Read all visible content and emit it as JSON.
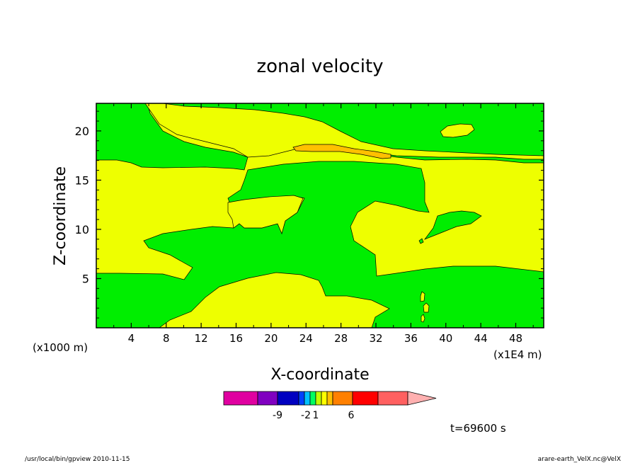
{
  "chart_data": {
    "type": "heatmap",
    "title": "zonal velocity",
    "xlabel": "X-coordinate",
    "ylabel": "Z-coordinate",
    "x_unit_left": "(x1000 m)",
    "x_unit_right": "(x1E4 m)",
    "xlim": [
      0,
      51.2
    ],
    "ylim": [
      0,
      22.8
    ],
    "x_ticks": [
      4,
      8,
      12,
      16,
      20,
      24,
      28,
      32,
      36,
      40,
      44,
      48
    ],
    "y_ticks": [
      5,
      10,
      15,
      20
    ],
    "time_label": "t=69600 s",
    "colorbar": {
      "tick_labels": [
        "-9",
        "-2",
        "1",
        "6"
      ],
      "segment_colors": [
        "#e000a0",
        "#8000c0",
        "#0000c0",
        "#0040ff",
        "#00c0ff",
        "#00ff60",
        "#c0ff00",
        "#ffff00",
        "#ffc000",
        "#ff8000",
        "#ff0000",
        "#ff6060",
        "#ffb0b0"
      ]
    },
    "fill_colors": {
      "positive": "#eeff00",
      "negative": "#00ee00",
      "strong": "#ffc000"
    }
  },
  "footer": {
    "left": "/usr/local/bin/gpview   2010-11-15",
    "right": "arare-earth_VelX.nc@VelX"
  }
}
